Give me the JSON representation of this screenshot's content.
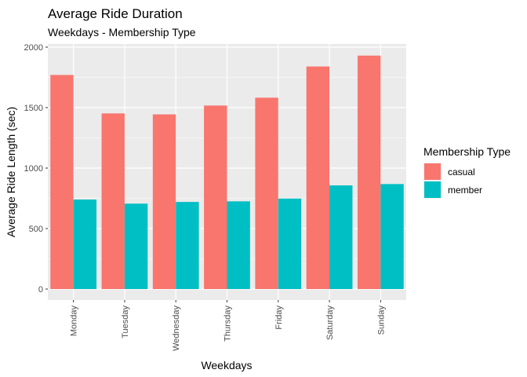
{
  "chart_data": {
    "type": "bar",
    "title": "Average Ride Duration",
    "subtitle": "Weekdays - Membership Type",
    "xlabel": "Weekdays",
    "ylabel": "Average Ride Length (sec)",
    "categories": [
      "Monday",
      "Tuesday",
      "Wednesday",
      "Thursday",
      "Friday",
      "Saturday",
      "Sunday"
    ],
    "series": [
      {
        "name": "casual",
        "color": "#F8766D",
        "values": [
          1770,
          1452,
          1444,
          1517,
          1582,
          1840,
          1930
        ]
      },
      {
        "name": "member",
        "color": "#00BFC4",
        "values": [
          740,
          706,
          720,
          725,
          748,
          857,
          868
        ]
      }
    ],
    "ylim": [
      0,
      2000
    ],
    "yticks": [
      0,
      500,
      1000,
      1500,
      2000
    ],
    "legend": {
      "title": "Membership Type",
      "position": "right"
    },
    "grid": true
  }
}
